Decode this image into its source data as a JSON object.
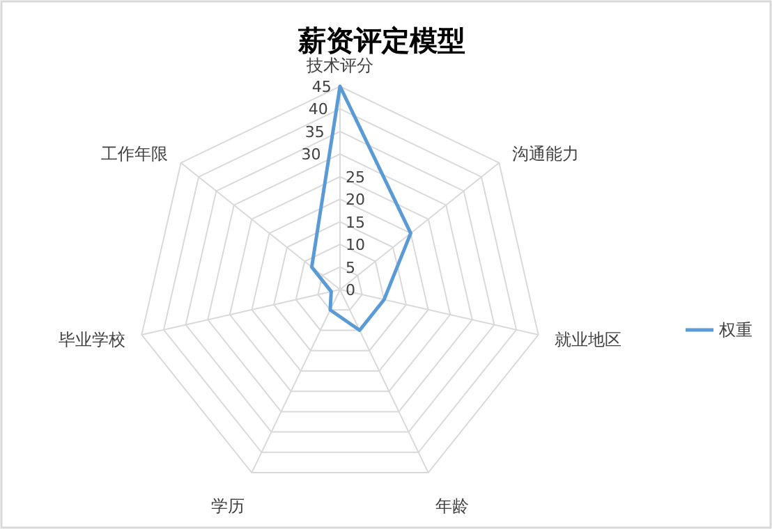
{
  "chart_data": {
    "type": "radar",
    "title": "薪资评定模型",
    "categories": [
      "技术评分",
      "沟通能力",
      "就业地区",
      "年龄",
      "学历",
      "毕业学校",
      "工作年限"
    ],
    "series": [
      {
        "name": "权重",
        "color": "#5b9bd5",
        "values": [
          45,
          20,
          10,
          10,
          5,
          2,
          8
        ]
      }
    ],
    "ylim": [
      0,
      45
    ],
    "yticks": [
      0,
      5,
      10,
      15,
      20,
      25,
      30,
      35,
      40,
      45
    ],
    "grid": true,
    "legend": "right"
  }
}
